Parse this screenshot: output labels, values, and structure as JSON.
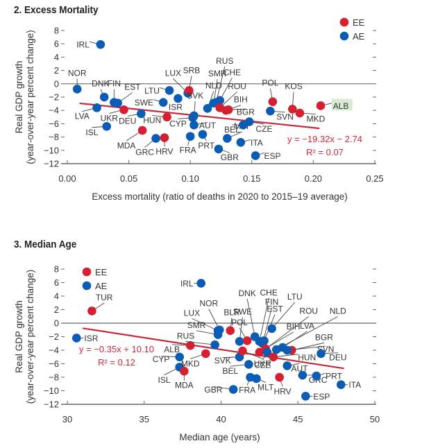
{
  "colors": {
    "EE": "#d42031",
    "AE": "#0b5cb5",
    "trend": "#c8283a",
    "axis": "#666666",
    "highlight": "#d7ead2"
  },
  "chart_data": [
    {
      "type": "scatter",
      "title": "2. Excess Mortality",
      "xlabel": "Excess mortality (ratio of deaths in 2020 to 2015–19 average)",
      "ylabel_line1": "Real GDP growth",
      "ylabel_line2": "(year-over-year percent change)",
      "xlim": [
        0,
        0.25
      ],
      "ylim": [
        -12,
        8
      ],
      "xticks": [
        0.0,
        0.05,
        0.1,
        0.15,
        0.2,
        0.25
      ],
      "xtick_labels": [
        "0.00",
        "0.05",
        "0.10",
        "0.15",
        "0.20",
        "0.25"
      ],
      "yticks": [
        8,
        6,
        4,
        2,
        0,
        -2,
        -4,
        -6,
        -8,
        -10,
        -12
      ],
      "ytick_labels": [
        "8",
        "6",
        "4",
        "2",
        "0",
        "−2",
        "−4",
        "−6",
        "−8",
        "−10",
        "−12"
      ],
      "legend": {
        "placement": "top-right",
        "entries": [
          {
            "name": "EE",
            "group": "EE"
          },
          {
            "name": "AE",
            "group": "AE"
          }
        ]
      },
      "trendline": {
        "slope": -19.32,
        "intercept": -2.74,
        "x_range": [
          0.01,
          0.205
        ],
        "equation": "y = −19.32x − 2.74",
        "r2": "R² = 0.07"
      },
      "highlight": "ALB",
      "points": [
        {
          "label": "IRL",
          "group": "AE",
          "x": 0.027,
          "y": 5.9,
          "lx": -0.009,
          "ly": 0.0,
          "anchor": "end"
        },
        {
          "label": "NOR",
          "group": "AE",
          "x": 0.008,
          "y": -0.8,
          "lx": 0.0,
          "ly": 2.0,
          "anchor": "middle"
        },
        {
          "label": "DNK",
          "group": "AE",
          "x": 0.03,
          "y": -2.0,
          "lx": -0.003,
          "ly": 1.6,
          "anchor": "middle"
        },
        {
          "label": "FIN",
          "group": "AE",
          "x": 0.038,
          "y": -2.8,
          "lx": 0.0,
          "ly": 2.4,
          "anchor": "middle"
        },
        {
          "label": "EST",
          "group": "AE",
          "x": 0.041,
          "y": -2.9,
          "lx": 0.012,
          "ly": 2.0,
          "anchor": "middle"
        },
        {
          "label": "LVA",
          "group": "AE",
          "x": 0.024,
          "y": -3.6,
          "lx": -0.012,
          "ly": -1.6,
          "anchor": "middle"
        },
        {
          "label": "UKR",
          "group": "EE",
          "x": 0.046,
          "y": -3.9,
          "lx": -0.012,
          "ly": -1.6,
          "anchor": "middle"
        },
        {
          "label": "DEU",
          "group": "AE",
          "x": 0.06,
          "y": -4.5,
          "lx": -0.011,
          "ly": -1.4,
          "anchor": "middle"
        },
        {
          "label": "ISL",
          "group": "AE",
          "x": 0.032,
          "y": -6.4,
          "lx": -0.012,
          "ly": -1.2,
          "anchor": "middle"
        },
        {
          "label": "MDA",
          "group": "EE",
          "x": 0.061,
          "y": -7.0,
          "lx": -0.013,
          "ly": -2.6,
          "anchor": "middle"
        },
        {
          "label": "GRC",
          "group": "AE",
          "x": 0.072,
          "y": -8.2,
          "lx": -0.009,
          "ly": -2.4,
          "anchor": "middle"
        },
        {
          "label": "HRV",
          "group": "EE",
          "x": 0.079,
          "y": -8.1,
          "lx": 0.0,
          "ly": -2.4,
          "anchor": "middle"
        },
        {
          "label": "HUN",
          "group": "EE",
          "x": 0.081,
          "y": -5.0,
          "lx": -0.012,
          "ly": -0.8,
          "anchor": "middle"
        },
        {
          "label": "SWE",
          "group": "AE",
          "x": 0.078,
          "y": -2.8,
          "lx": -0.008,
          "ly": 0.0,
          "anchor": "end"
        },
        {
          "label": "LTU",
          "group": "AE",
          "x": 0.083,
          "y": -1.0,
          "lx": -0.008,
          "ly": 0.0,
          "anchor": "end"
        },
        {
          "label": "ISR",
          "group": "AE",
          "x": 0.09,
          "y": -2.2,
          "lx": -0.002,
          "ly": -1.6,
          "anchor": "middle"
        },
        {
          "label": "LUX",
          "group": "AE",
          "x": 0.098,
          "y": -1.4,
          "lx": -0.012,
          "ly": 2.6,
          "anchor": "middle"
        },
        {
          "label": "SRB",
          "group": "EE",
          "x": 0.099,
          "y": -1.0,
          "lx": 0.002,
          "ly": 2.6,
          "anchor": "middle"
        },
        {
          "label": "SVK",
          "group": "AE",
          "x": 0.103,
          "y": -4.8,
          "lx": 0.001,
          "ly": 2.6,
          "anchor": "middle"
        },
        {
          "label": "CYP",
          "group": "AE",
          "x": 0.102,
          "y": -5.1,
          "lx": -0.012,
          "ly": -1.2,
          "anchor": "middle"
        },
        {
          "label": "AUT",
          "group": "AE",
          "x": 0.103,
          "y": -6.2,
          "lx": 0.011,
          "ly": 0.0,
          "anchor": "middle"
        },
        {
          "label": "FRA",
          "group": "AE",
          "x": 0.1,
          "y": -7.9,
          "lx": -0.002,
          "ly": -2.4,
          "anchor": "middle"
        },
        {
          "label": "PRT",
          "group": "AE",
          "x": 0.11,
          "y": -7.6,
          "lx": 0.003,
          "ly": -2.0,
          "anchor": "middle"
        },
        {
          "label": "NLD",
          "group": "AE",
          "x": 0.114,
          "y": -3.7,
          "lx": 0.005,
          "ly": 3.0,
          "anchor": "middle"
        },
        {
          "label": "SMR",
          "group": "AE",
          "x": 0.119,
          "y": -2.9,
          "lx": 0.003,
          "ly": 4.0,
          "anchor": "middle"
        },
        {
          "label": "RUS",
          "group": "AE",
          "x": 0.121,
          "y": -2.8,
          "lx": 0.007,
          "ly": 5.8,
          "anchor": "middle"
        },
        {
          "label": "CHE",
          "group": "AE",
          "x": 0.124,
          "y": -2.5,
          "lx": 0.01,
          "ly": 3.8,
          "anchor": "middle"
        },
        {
          "label": "ROU",
          "group": "EE",
          "x": 0.124,
          "y": -3.6,
          "lx": 0.014,
          "ly": 2.8,
          "anchor": "middle"
        },
        {
          "label": "BIH",
          "group": "EE",
          "x": 0.129,
          "y": -4.0,
          "lx": 0.012,
          "ly": 1.2,
          "anchor": "middle"
        },
        {
          "label": "BGR",
          "group": "EE",
          "x": 0.131,
          "y": -3.9,
          "lx": 0.014,
          "ly": -0.3,
          "anchor": "middle"
        },
        {
          "label": "GBR",
          "group": "AE",
          "x": 0.123,
          "y": -9.8,
          "lx": 0.009,
          "ly": -1.6,
          "anchor": "middle"
        },
        {
          "label": "MLT",
          "group": "AE",
          "x": 0.13,
          "y": -8.2,
          "lx": 0.012,
          "ly": 1.4,
          "anchor": "middle"
        },
        {
          "label": "BEL",
          "group": "AE",
          "x": 0.143,
          "y": -6.2,
          "lx": -0.009,
          "ly": -1.0,
          "anchor": "middle"
        },
        {
          "label": "ITA",
          "group": "AE",
          "x": 0.141,
          "y": -8.8,
          "lx": 0.008,
          "ly": 0.0,
          "anchor": "start"
        },
        {
          "label": "CZE",
          "group": "AE",
          "x": 0.148,
          "y": -5.7,
          "lx": 0.012,
          "ly": -1.4,
          "anchor": "middle"
        },
        {
          "label": "ESP",
          "group": "AE",
          "x": 0.153,
          "y": -10.8,
          "lx": 0.007,
          "ly": 0.0,
          "anchor": "start"
        },
        {
          "label": "SVN",
          "group": "AE",
          "x": 0.165,
          "y": -4.1,
          "lx": 0.012,
          "ly": -1.2,
          "anchor": "middle"
        },
        {
          "label": "POL",
          "group": "EE",
          "x": 0.167,
          "y": -2.7,
          "lx": -0.002,
          "ly": 2.4,
          "anchor": "middle"
        },
        {
          "label": "KOS",
          "group": "EE",
          "x": 0.183,
          "y": -3.8,
          "lx": 0.001,
          "ly": 3.0,
          "anchor": "middle"
        },
        {
          "label": "MKD",
          "group": "EE",
          "x": 0.189,
          "y": -4.4,
          "lx": 0.013,
          "ly": -1.2,
          "anchor": "middle"
        },
        {
          "label": "ALB",
          "group": "EE",
          "x": 0.206,
          "y": -3.3,
          "lx": 0.01,
          "ly": 0.0,
          "anchor": "start"
        }
      ]
    },
    {
      "type": "scatter",
      "title": "3. Median Age",
      "xlabel": "Median age (years)",
      "ylabel_line1": "Real GDP growth",
      "ylabel_line2": "(year-over-year percent change)",
      "xlim": [
        30,
        50
      ],
      "ylim": [
        -12,
        8
      ],
      "xticks": [
        30,
        35,
        40,
        45,
        50
      ],
      "xtick_labels": [
        "30",
        "35",
        "40",
        "45",
        "50"
      ],
      "yticks": [
        8,
        6,
        4,
        2,
        0,
        -2,
        -4,
        -6,
        -8,
        -10,
        -12
      ],
      "ytick_labels": [
        "8",
        "6",
        "4",
        "2",
        "0",
        "−2",
        "−4",
        "−6",
        "−8",
        "−10",
        "−12"
      ],
      "legend": {
        "placement": "top-left",
        "entries": [
          {
            "name": "EE",
            "group": "EE"
          },
          {
            "name": "AE",
            "group": "AE"
          }
        ]
      },
      "trendline": {
        "slope": -0.35,
        "intercept": 10.1,
        "x_range": [
          31.0,
          48.0
        ],
        "equation": "y = −0.35x + 10.10",
        "r2": "R² = 0.12"
      },
      "points": [
        {
          "label": "TUR",
          "group": "EE",
          "x": 31.6,
          "y": 1.8,
          "lx": 0.8,
          "ly": 1.6,
          "anchor": "middle"
        },
        {
          "label": "ISR",
          "group": "AE",
          "x": 30.6,
          "y": -2.2,
          "lx": 0.5,
          "ly": 0.0,
          "anchor": "start"
        },
        {
          "label": "IRL",
          "group": "AE",
          "x": 38.7,
          "y": 5.9,
          "lx": -0.5,
          "ly": 0.0,
          "anchor": "end"
        },
        {
          "label": "ALB",
          "group": "EE",
          "x": 38.0,
          "y": -3.3,
          "lx": -1.2,
          "ly": -0.9,
          "anchor": "middle"
        },
        {
          "label": "CYP",
          "group": "AE",
          "x": 37.3,
          "y": -5.0,
          "lx": -1.2,
          "ly": -0.3,
          "anchor": "middle"
        },
        {
          "label": "ISL",
          "group": "AE",
          "x": 37.3,
          "y": -6.5,
          "lx": -1.0,
          "ly": -2.2,
          "anchor": "middle"
        },
        {
          "label": "MDA",
          "group": "EE",
          "x": 37.6,
          "y": -7.1,
          "lx": 0.0,
          "ly": -2.4,
          "anchor": "middle"
        },
        {
          "label": "MKD",
          "group": "EE",
          "x": 39.0,
          "y": -4.5,
          "lx": -1.0,
          "ly": -1.8,
          "anchor": "middle"
        },
        {
          "label": "RUS",
          "group": "AE",
          "x": 39.6,
          "y": -3.2,
          "lx": -1.9,
          "ly": 0.9,
          "anchor": "middle"
        },
        {
          "label": "SMR",
          "group": "AE",
          "x": 39.8,
          "y": -1.7,
          "lx": -1.4,
          "ly": 1.0,
          "anchor": "middle"
        },
        {
          "label": "LUX",
          "group": "AE",
          "x": 39.8,
          "y": -1.1,
          "lx": -1.7,
          "ly": 2.2,
          "anchor": "middle"
        },
        {
          "label": "NOR",
          "group": "AE",
          "x": 39.9,
          "y": -1.0,
          "lx": -0.7,
          "ly": 3.5,
          "anchor": "middle"
        },
        {
          "label": "BLR",
          "group": "EE",
          "x": 40.6,
          "y": -1.1,
          "lx": 0.1,
          "ly": 2.3,
          "anchor": "middle"
        },
        {
          "label": "GBR",
          "group": "AE",
          "x": 40.8,
          "y": -9.8,
          "lx": -1.3,
          "ly": 0.0,
          "anchor": "middle"
        },
        {
          "label": "SWE",
          "group": "AE",
          "x": 41.2,
          "y": -2.7,
          "lx": 0.2,
          "ly": 4.0,
          "anchor": "middle"
        },
        {
          "label": "SVK",
          "group": "AE",
          "x": 41.2,
          "y": -5.0,
          "lx": -1.1,
          "ly": -0.5,
          "anchor": "middle"
        },
        {
          "label": "POL",
          "group": "EE",
          "x": 41.7,
          "y": -2.6,
          "lx": -0.5,
          "ly": 2.3,
          "anchor": "middle"
        },
        {
          "label": "BEL",
          "group": "AE",
          "x": 41.8,
          "y": -6.1,
          "lx": -1.2,
          "ly": -1.3,
          "anchor": "middle"
        },
        {
          "label": "FRA",
          "group": "AE",
          "x": 41.9,
          "y": -8.0,
          "lx": -0.2,
          "ly": -2.2,
          "anchor": "middle"
        },
        {
          "label": "UKR",
          "group": "EE",
          "x": 41.4,
          "y": -4.1,
          "lx": 1.3,
          "ly": -2.2,
          "anchor": "middle"
        },
        {
          "label": "DNK",
          "group": "AE",
          "x": 42.2,
          "y": -2.0,
          "lx": -0.5,
          "ly": 6.0,
          "anchor": "middle"
        },
        {
          "label": "MLT",
          "group": "AE",
          "x": 42.3,
          "y": -8.2,
          "lx": 0.6,
          "ly": -1.6,
          "anchor": "middle"
        },
        {
          "label": "CHE",
          "group": "AE",
          "x": 42.5,
          "y": -2.7,
          "lx": 0.6,
          "ly": 6.8,
          "anchor": "middle"
        },
        {
          "label": "FIN",
          "group": "AE",
          "x": 42.7,
          "y": -3.0,
          "lx": 0.6,
          "ly": 5.7,
          "anchor": "middle"
        },
        {
          "label": "EST",
          "group": "AE",
          "x": 42.8,
          "y": -2.6,
          "lx": 0.7,
          "ly": 4.3,
          "anchor": "middle"
        },
        {
          "label": "LTU",
          "group": "AE",
          "x": 43.3,
          "y": -0.8,
          "lx": 1.5,
          "ly": 4.3,
          "anchor": "middle"
        },
        {
          "label": "BIH",
          "group": "EE",
          "x": 42.5,
          "y": -4.3,
          "lx": 2.2,
          "ly": 3.4,
          "anchor": "middle"
        },
        {
          "label": "ROU",
          "group": "EE",
          "x": 42.9,
          "y": -3.8,
          "lx": 2.8,
          "ly": 5.2,
          "anchor": "middle"
        },
        {
          "label": "CZE",
          "group": "AE",
          "x": 43.0,
          "y": -4.3,
          "lx": -0.3,
          "ly": -2.2,
          "anchor": "middle"
        },
        {
          "label": "HRV",
          "group": "EE",
          "x": 43.8,
          "y": -8.0,
          "lx": 0.2,
          "ly": -2.4,
          "anchor": "middle"
        },
        {
          "label": "HUN",
          "group": "EE",
          "x": 43.4,
          "y": -5.0,
          "lx": 1.6,
          "ly": 0.0,
          "anchor": "start"
        },
        {
          "label": "NLD",
          "group": "AE",
          "x": 43.6,
          "y": -3.9,
          "lx": 4.0,
          "ly": 5.3,
          "anchor": "middle"
        },
        {
          "label": "LVA",
          "group": "AE",
          "x": 44.0,
          "y": -3.6,
          "lx": 1.6,
          "ly": 2.8,
          "anchor": "middle"
        },
        {
          "label": "AUT",
          "group": "AE",
          "x": 44.3,
          "y": -6.3,
          "lx": 0.8,
          "ly": -0.7,
          "anchor": "middle"
        },
        {
          "label": "BGR",
          "group": "EE",
          "x": 44.6,
          "y": -4.0,
          "lx": 2.1,
          "ly": 1.5,
          "anchor": "middle"
        },
        {
          "label": "SVN",
          "group": "AE",
          "x": 44.3,
          "y": -4.0,
          "lx": 2.5,
          "ly": 0.2,
          "anchor": "middle"
        },
        {
          "label": "GRC",
          "group": "AE",
          "x": 45.3,
          "y": -7.7,
          "lx": 1.0,
          "ly": -1.0,
          "anchor": "middle"
        },
        {
          "label": "ESP",
          "group": "AE",
          "x": 45.5,
          "y": -10.8,
          "lx": 0.5,
          "ly": 0.0,
          "anchor": "start"
        },
        {
          "label": "PRT",
          "group": "AE",
          "x": 46.2,
          "y": -7.8,
          "lx": 0.6,
          "ly": 0.0,
          "anchor": "start"
        },
        {
          "label": "DEU",
          "group": "AE",
          "x": 46.5,
          "y": -4.5,
          "lx": 1.1,
          "ly": -0.9,
          "anchor": "middle"
        },
        {
          "label": "ITA",
          "group": "AE",
          "x": 47.8,
          "y": -9.1,
          "lx": 0.5,
          "ly": 0.0,
          "anchor": "start"
        }
      ]
    }
  ]
}
